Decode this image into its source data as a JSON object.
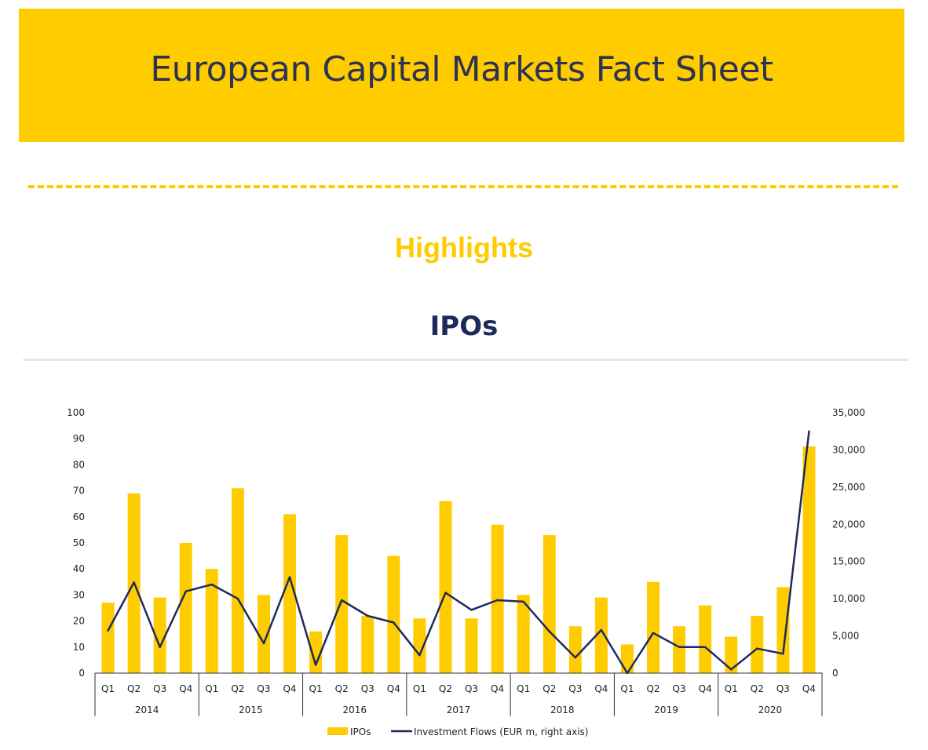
{
  "header": {
    "title": "European Capital Markets Fact Sheet"
  },
  "highlights": "Highlights",
  "section_title": "IPOs",
  "colors": {
    "banner": "#FFCC00",
    "bar": "#FFCC00",
    "line": "#1f2a5c",
    "title": "#1f2a5c"
  },
  "chart_data": {
    "type": "bar",
    "title": "IPOs",
    "quarters": [
      "Q1",
      "Q2",
      "Q3",
      "Q4",
      "Q1",
      "Q2",
      "Q3",
      "Q4",
      "Q1",
      "Q2",
      "Q3",
      "Q4",
      "Q1",
      "Q2",
      "Q3",
      "Q4",
      "Q1",
      "Q2",
      "Q3",
      "Q4",
      "Q1",
      "Q2",
      "Q3",
      "Q4",
      "Q1",
      "Q2",
      "Q3",
      "Q4"
    ],
    "years": [
      "2014",
      "2015",
      "2016",
      "2017",
      "2018",
      "2019",
      "2020"
    ],
    "left_axis": {
      "ylim": [
        0,
        100
      ],
      "ticks": [
        "0",
        "10",
        "20",
        "30",
        "40",
        "50",
        "60",
        "70",
        "80",
        "90",
        "100"
      ]
    },
    "right_axis": {
      "ylim": [
        0,
        35000
      ],
      "ticks": [
        "0",
        "5,000",
        "10,000",
        "15,000",
        "20,000",
        "25,000",
        "30,000",
        "35,000"
      ]
    },
    "series": [
      {
        "name": "IPOs",
        "type": "bar",
        "axis": "left",
        "values": [
          27,
          69,
          29,
          50,
          40,
          71,
          30,
          61,
          16,
          53,
          22,
          45,
          21,
          66,
          21,
          57,
          30,
          53,
          18,
          29,
          11,
          35,
          18,
          26,
          14,
          22,
          33,
          87
        ]
      },
      {
        "name": "Investment Flows (EUR m, right axis)",
        "type": "line",
        "axis": "right",
        "values": [
          5700,
          12200,
          3500,
          11000,
          11900,
          10000,
          4000,
          12900,
          1100,
          9800,
          7700,
          6800,
          2400,
          10800,
          8500,
          9800,
          9600,
          5600,
          2100,
          5800,
          0,
          5400,
          3500,
          3500,
          500,
          3300,
          2600,
          32500
        ]
      }
    ],
    "legend": {
      "position": "bottom",
      "entries": [
        "IPOs",
        "Investment Flows (EUR m, right axis)"
      ]
    },
    "grid": false
  }
}
